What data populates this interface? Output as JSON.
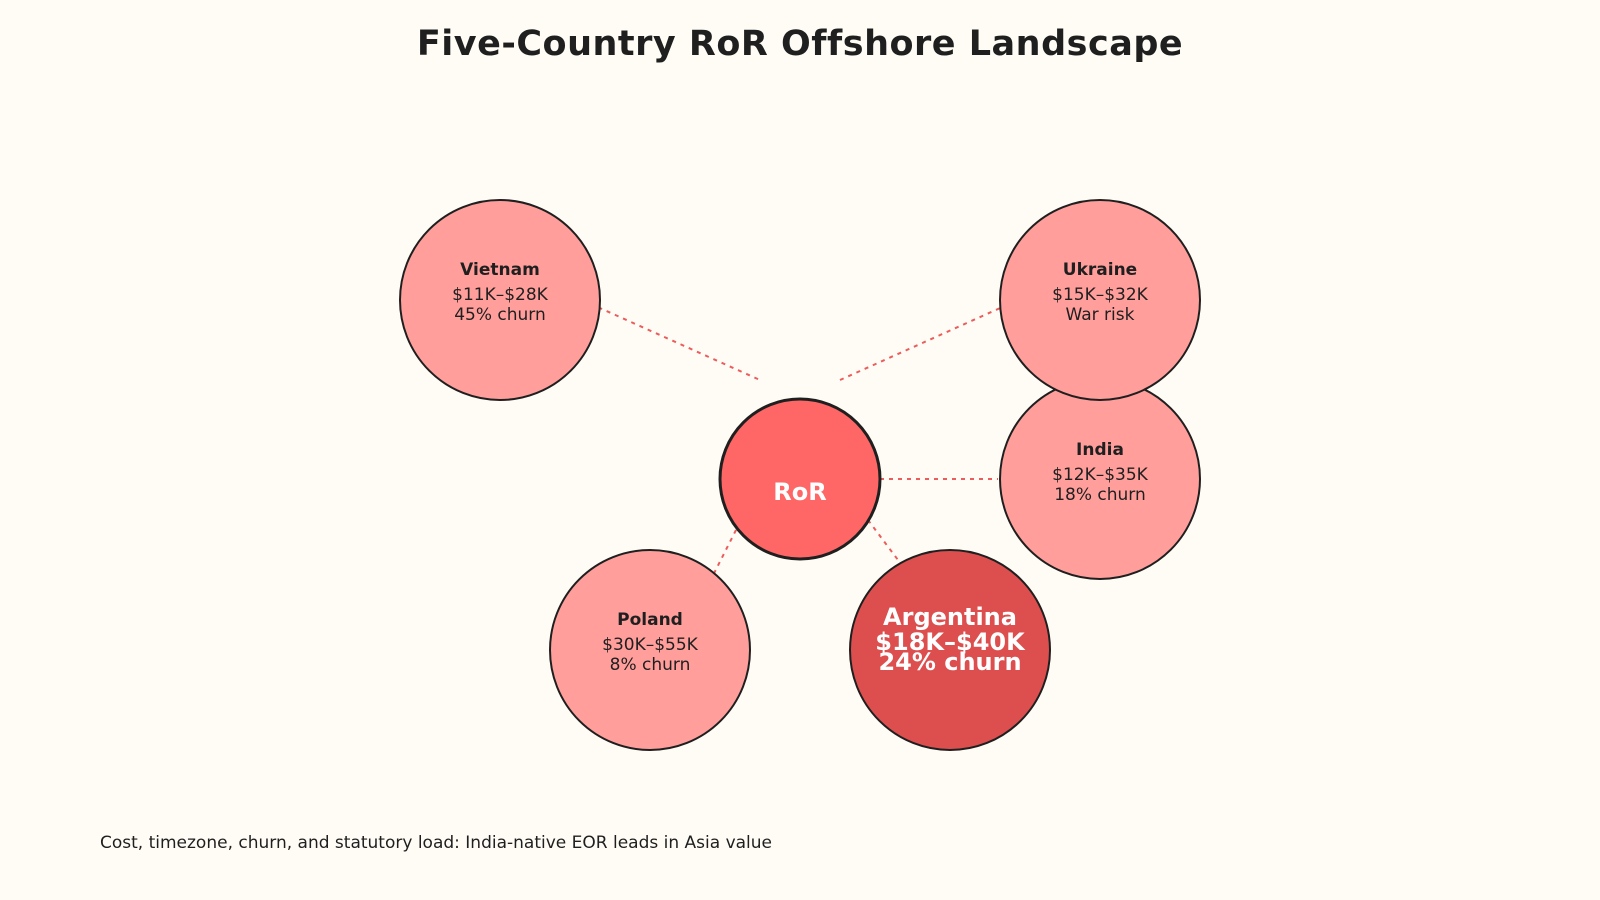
{
  "title": "Five-Country RoR Offshore Landscape",
  "hub": {
    "label": "RoR",
    "color": "#ff6666"
  },
  "nodes": [
    {
      "id": "vietnam",
      "name": "Vietnam",
      "cost": "$11K–$28K",
      "note": "45% churn",
      "highlight": false
    },
    {
      "id": "ukraine",
      "name": "Ukraine",
      "cost": "$15K–$32K",
      "note": "War risk",
      "highlight": false
    },
    {
      "id": "india",
      "name": "India",
      "cost": "$12K–$35K",
      "note": "18% churn",
      "highlight": false
    },
    {
      "id": "poland",
      "name": "Poland",
      "cost": "$30K–$55K",
      "note": "8% churn",
      "highlight": false
    },
    {
      "id": "argentina",
      "name": "Argentina",
      "cost": "$18K–$40K",
      "note": "24% churn",
      "highlight": true
    }
  ],
  "colors": {
    "node_fill": "#ff9e9b",
    "highlight_fill": "#dd4e4e",
    "connector": "#ec5c5c",
    "stroke": "#1f1f1f"
  },
  "caption": "Cost, timezone, churn, and statutory load: India-native EOR leads in Asia value"
}
